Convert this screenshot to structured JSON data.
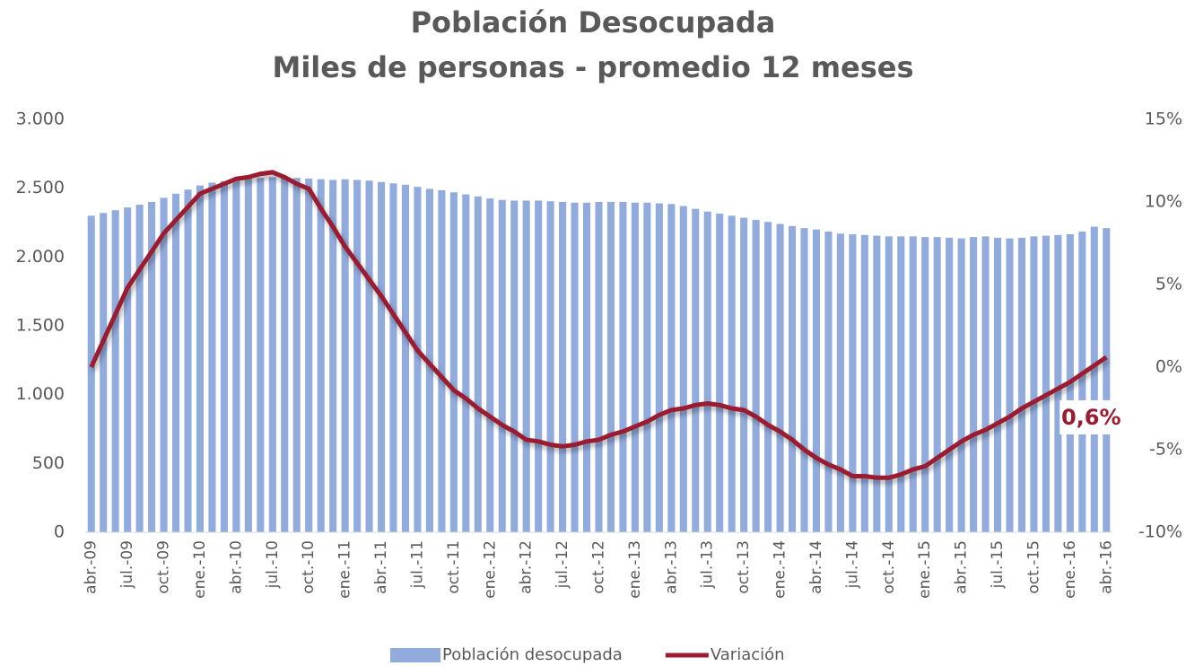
{
  "chart_data": {
    "type": "bar_line",
    "title": "Población Desocupada",
    "subtitle": "Miles de personas - promedio 12 meses",
    "categories": [
      "abr.-09",
      null,
      null,
      "jul.-09",
      null,
      null,
      "oct.-09",
      null,
      null,
      "ene.-10",
      null,
      null,
      "abr.-10",
      null,
      null,
      "jul.-10",
      null,
      null,
      "oct.-10",
      null,
      null,
      "ene.-11",
      null,
      null,
      "abr.-11",
      null,
      null,
      "jul.-11",
      null,
      null,
      "oct.-11",
      null,
      null,
      "ene.-12",
      null,
      null,
      "abr.-12",
      null,
      null,
      "jul.-12",
      null,
      null,
      "oct.-12",
      null,
      null,
      "ene.-13",
      null,
      null,
      "abr.-13",
      null,
      null,
      "jul.-13",
      null,
      null,
      "oct.-13",
      null,
      null,
      "ene.-14",
      null,
      null,
      "abr.-14",
      null,
      null,
      "jul.-14",
      null,
      null,
      "oct.-14",
      null,
      null,
      "ene.-15",
      null,
      null,
      "abr.-15",
      null,
      null,
      "jul.-15",
      null,
      null,
      "oct.-15",
      null,
      null,
      "ene.-16",
      null,
      null,
      "abr.-16"
    ],
    "series": [
      {
        "name": "Población desocupada",
        "type": "bar",
        "color": "#91abdc",
        "values": [
          2300,
          2320,
          2340,
          2360,
          2380,
          2400,
          2430,
          2460,
          2490,
          2520,
          2540,
          2550,
          2560,
          2570,
          2575,
          2580,
          2580,
          2575,
          2570,
          2565,
          2560,
          2565,
          2560,
          2555,
          2545,
          2535,
          2525,
          2510,
          2495,
          2485,
          2470,
          2455,
          2440,
          2425,
          2415,
          2410,
          2410,
          2410,
          2405,
          2400,
          2395,
          2395,
          2400,
          2400,
          2400,
          2395,
          2395,
          2390,
          2385,
          2370,
          2350,
          2330,
          2315,
          2300,
          2285,
          2270,
          2255,
          2240,
          2225,
          2210,
          2200,
          2185,
          2170,
          2165,
          2160,
          2155,
          2150,
          2150,
          2150,
          2145,
          2145,
          2140,
          2135,
          2145,
          2150,
          2140,
          2135,
          2140,
          2150,
          2155,
          2160,
          2165,
          2185,
          2220,
          2210
        ]
      },
      {
        "name": "Variación",
        "type": "line",
        "axis": "y2",
        "color": "#9b1b30",
        "values": [
          0,
          1.6,
          3.2,
          4.8,
          5.9,
          7.0,
          8.1,
          8.9,
          9.7,
          10.5,
          10.8,
          11.1,
          11.4,
          11.5,
          11.7,
          11.8,
          11.5,
          11.1,
          10.8,
          9.6,
          8.5,
          7.3,
          6.3,
          5.3,
          4.3,
          3.2,
          2.1,
          1.0,
          0.2,
          -0.6,
          -1.4,
          -1.9,
          -2.5,
          -3.0,
          -3.5,
          -3.9,
          -4.4,
          -4.5,
          -4.7,
          -4.8,
          -4.7,
          -4.5,
          -4.4,
          -4.1,
          -3.9,
          -3.6,
          -3.3,
          -2.9,
          -2.6,
          -2.5,
          -2.3,
          -2.2,
          -2.3,
          -2.5,
          -2.6,
          -3.0,
          -3.5,
          -3.9,
          -4.4,
          -5.0,
          -5.5,
          -5.9,
          -6.2,
          -6.6,
          -6.6,
          -6.7,
          -6.7,
          -6.5,
          -6.2,
          -6.0,
          -5.5,
          -5.0,
          -4.5,
          -4.1,
          -3.8,
          -3.4,
          -3.0,
          -2.5,
          -2.1,
          -1.7,
          -1.3,
          -0.9,
          -0.4,
          0.1,
          0.6
        ],
        "value_labels": [
          null,
          null,
          null,
          null,
          null,
          null,
          null,
          null,
          null,
          null,
          null,
          null,
          null,
          null,
          null,
          null,
          null,
          null,
          null,
          null,
          null,
          null,
          null,
          null,
          null,
          null,
          null,
          null,
          null,
          null,
          null,
          null,
          null,
          null,
          null,
          null,
          null,
          null,
          null,
          null,
          null,
          null,
          null,
          null,
          null,
          null,
          null,
          null,
          null,
          null,
          null,
          null,
          null,
          null,
          null,
          null,
          null,
          null,
          null,
          null,
          null,
          null,
          null,
          null,
          null,
          null,
          null,
          null,
          null,
          null,
          null,
          null,
          null,
          null,
          null,
          null,
          null,
          null,
          null,
          null,
          null,
          null,
          null,
          null,
          "0,6%"
        ]
      }
    ],
    "ylim": [
      0,
      3000
    ],
    "yticks": [
      0,
      500,
      {
        "value": 1000,
        "label": "1.000"
      },
      {
        "value": 1500,
        "label": "1.500"
      },
      {
        "value": 2000,
        "label": "2.000"
      },
      {
        "value": 2500,
        "label": "2.500"
      },
      {
        "value": 3000,
        "label": "3.000"
      }
    ],
    "y2lim": [
      -10,
      15
    ],
    "y2ticks": [
      {
        "value": -10,
        "label": "-10%"
      },
      {
        "value": -5,
        "label": "-5%"
      },
      {
        "value": 0,
        "label": "0%"
      },
      {
        "value": 5,
        "label": "5%"
      },
      {
        "value": 10,
        "label": "10%"
      },
      {
        "value": 15,
        "label": "15%"
      }
    ],
    "legend": "bottom"
  }
}
